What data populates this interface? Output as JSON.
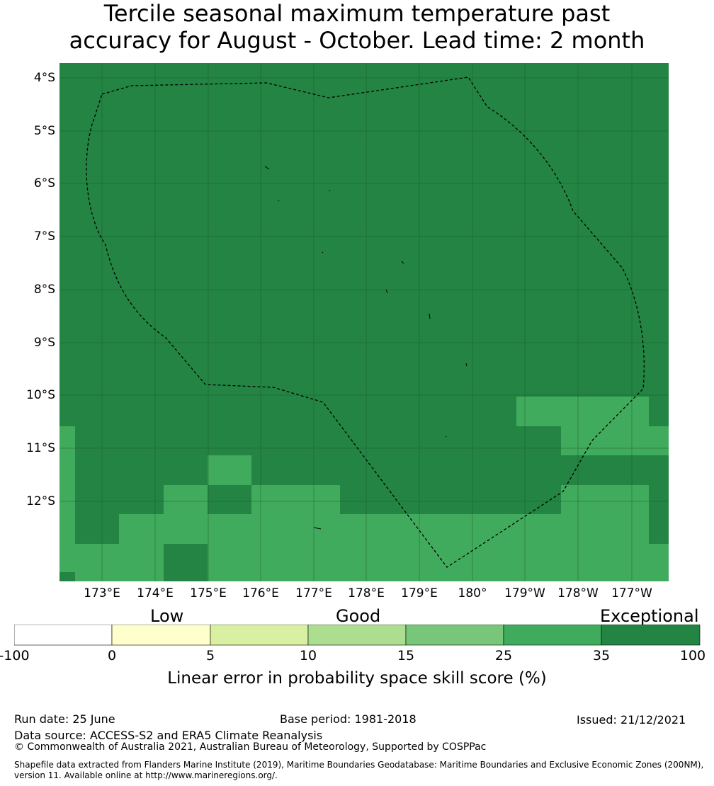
{
  "title_line1": "Tercile seasonal maximum temperature past",
  "title_line2": "accuracy for August - October. Lead time: 2 month",
  "map": {
    "lat_labels": [
      "4°S",
      "5°S",
      "6°S",
      "7°S",
      "8°S",
      "9°S",
      "10°S",
      "11°S",
      "12°S"
    ],
    "lon_labels": [
      "173°E",
      "174°E",
      "175°E",
      "176°E",
      "177°E",
      "178°E",
      "179°E",
      "180°",
      "179°W",
      "178°W",
      "177°W"
    ],
    "colors": {
      "exceptional": "#238443",
      "very_good": "#41ab5d",
      "boundary": "#000000",
      "grid": "#1a5a2c"
    }
  },
  "colorbar": {
    "category_labels": {
      "low": "Low",
      "good": "Good",
      "exceptional": "Exceptional"
    },
    "ticks": [
      "-100",
      "0",
      "5",
      "10",
      "15",
      "25",
      "35",
      "100"
    ],
    "colors": [
      "#ffffff",
      "#ffffcc",
      "#d9f0a3",
      "#addd8e",
      "#78c679",
      "#41ab5d",
      "#238443"
    ],
    "title": "Linear error in probability space skill score (%)"
  },
  "footer": {
    "run_date": "Run date: 25 June",
    "base_period": "Base period: 1981-2018",
    "issued": "Issued: 21/12/2021",
    "data_source": "Data source: ACCESS-S2 and ERA5 Climate Reanalysis",
    "copyright": "© Commonwealth of Australia 2021, Australian Bureau of Meteorology, Supported by COSPPac",
    "shapefile_note": "Shapefile data extracted from Flanders Marine Institute (2019), Maritime Boundaries Geodatabase: Maritime Boundaries and Exclusive Economic Zones (200NM), version 11. Available online at http://www.marineregions.org/."
  }
}
